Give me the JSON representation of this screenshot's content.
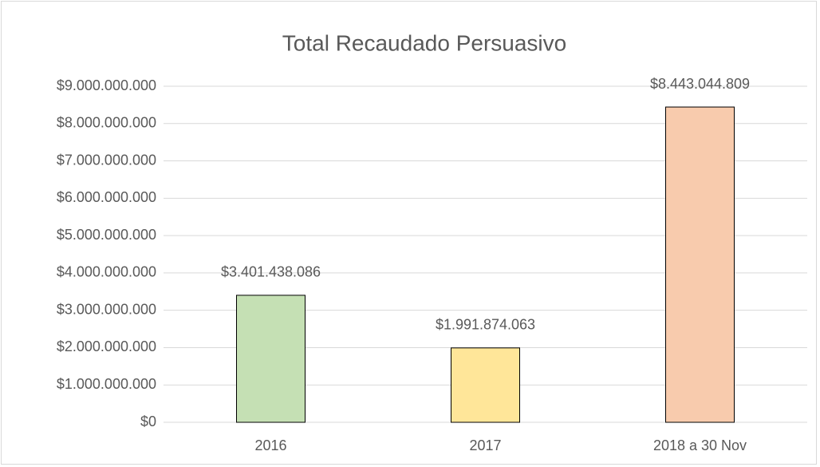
{
  "chart_data": {
    "type": "bar",
    "title": "Total Recaudado Persuasivo",
    "categories": [
      "2016",
      "2017",
      "2018 a 30 Nov"
    ],
    "values": [
      3401438086,
      1991874063,
      8443044809
    ],
    "value_labels": [
      "$3.401.438.086",
      "$1.991.874.063",
      "$8.443.044.809"
    ],
    "colors": [
      "#c5e0b4",
      "#ffe699",
      "#f8cbad"
    ],
    "ylim": [
      0,
      9000000000
    ],
    "yticks": [
      {
        "value": 0,
        "label": "$0"
      },
      {
        "value": 1000000000,
        "label": "$1.000.000.000"
      },
      {
        "value": 2000000000,
        "label": "$2.000.000.000"
      },
      {
        "value": 3000000000,
        "label": "$3.000.000.000"
      },
      {
        "value": 4000000000,
        "label": "$4.000.000.000"
      },
      {
        "value": 5000000000,
        "label": "$5.000.000.000"
      },
      {
        "value": 6000000000,
        "label": "$6.000.000.000"
      },
      {
        "value": 7000000000,
        "label": "$7.000.000.000"
      },
      {
        "value": 8000000000,
        "label": "$8.000.000.000"
      },
      {
        "value": 9000000000,
        "label": "$9.000.000.000"
      }
    ],
    "grid": true
  }
}
